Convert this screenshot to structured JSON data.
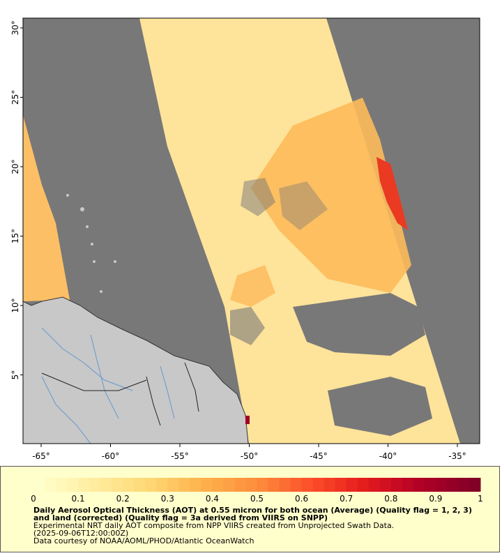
{
  "map": {
    "lat_ticks": [
      "30°",
      "25°",
      "20°",
      "15°",
      "10°",
      "5°"
    ],
    "lon_ticks": [
      "-65°",
      "-60°",
      "-55°",
      "-50°",
      "-45°",
      "-40°",
      "-35°"
    ],
    "colors": {
      "no_data": "#787878",
      "land": "#c8c8c8",
      "coast": "#333333",
      "river": "#6699cc"
    }
  },
  "legend": {
    "scale_min": 0,
    "scale_max": 1,
    "tick_labels": [
      "0",
      "0.1",
      "0.2",
      "0.3",
      "0.4",
      "0.5",
      "0.6",
      "0.7",
      "0.8",
      "0.9",
      "1"
    ],
    "colors": [
      "#ffffcc",
      "#ffeda0",
      "#fed976",
      "#feb24c",
      "#fd8d3c",
      "#fc4e2a",
      "#e31a1c",
      "#b10026",
      "#800026"
    ]
  },
  "caption": {
    "title": "Daily Aerosol Optical Thickness (AOT) at 0.55 micron for both ocean (Average) (Quality flag = 1, 2, 3) and land (corrected) (Quality flag = 3a derived from VIIRS on SNPP)",
    "line1": "Experimental NRT daily AOT composite from NPP VIIRS created from Unprojected Swath Data.",
    "line2": "(2025-09-06T12:00:00Z)",
    "line3": "Data courtesy of NOAA/AOML/PHOD/Atlantic OceanWatch"
  }
}
